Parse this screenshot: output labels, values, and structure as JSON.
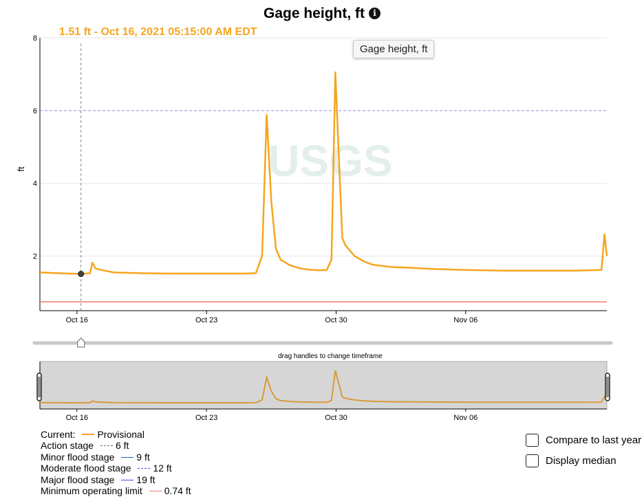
{
  "title": "Gage height, ft",
  "info_icon": "info-icon",
  "hover_label": "1.51 ft - Oct 16, 2021 05:15:00 AM EDT",
  "tooltip": "Gage height, ft",
  "brush_caption": "drag handles to change timeframe",
  "colors": {
    "series": "#f6a51e",
    "brush_series": "#d99a3a",
    "action": "#8a8ae0",
    "minimum": "#f07a70",
    "flood": "#2b50d8"
  },
  "chart_data": {
    "type": "line",
    "title": "Gage height, ft",
    "ylabel": "ft",
    "xlabel": "",
    "x_tick_labels": [
      "Oct 16",
      "Oct 23",
      "Oct 30",
      "Nov 06"
    ],
    "y_tick_labels": [
      "2",
      "4",
      "6",
      "8"
    ],
    "xlim": [
      "2021-10-14T00:00",
      "2021-11-13T15:00"
    ],
    "ylim": [
      0.5,
      8
    ],
    "series": [
      {
        "name": "Provisional",
        "x": [
          "2021-10-14T00:00",
          "2021-10-15T00:00",
          "2021-10-16T05:15",
          "2021-10-16T17:00",
          "2021-10-16T20:00",
          "2021-10-17T00:00",
          "2021-10-17T12:00",
          "2021-10-18T00:00",
          "2021-10-19T12:00",
          "2021-10-21T00:00",
          "2021-10-23T00:00",
          "2021-10-25T00:00",
          "2021-10-25T16:00",
          "2021-10-26T00:00",
          "2021-10-26T06:00",
          "2021-10-26T12:00",
          "2021-10-26T18:00",
          "2021-10-27T00:00",
          "2021-10-27T12:00",
          "2021-10-28T00:00",
          "2021-10-28T12:00",
          "2021-10-29T00:00",
          "2021-10-29T12:00",
          "2021-10-29T18:00",
          "2021-10-29T23:00",
          "2021-10-30T04:00",
          "2021-10-30T08:00",
          "2021-10-30T12:00",
          "2021-10-31T00:00",
          "2021-10-31T12:00",
          "2021-11-01T00:00",
          "2021-11-02T00:00",
          "2021-11-03T00:00",
          "2021-11-04T00:00",
          "2021-11-06T00:00",
          "2021-11-08T00:00",
          "2021-11-10T00:00",
          "2021-11-12T00:00",
          "2021-11-13T08:00",
          "2021-11-13T12:00",
          "2021-11-13T15:00"
        ],
        "y": [
          1.55,
          1.53,
          1.51,
          1.53,
          1.82,
          1.66,
          1.6,
          1.55,
          1.53,
          1.52,
          1.52,
          1.52,
          1.53,
          2.0,
          5.88,
          3.5,
          2.2,
          1.9,
          1.75,
          1.67,
          1.63,
          1.61,
          1.62,
          1.9,
          7.05,
          4.5,
          2.5,
          2.3,
          2.0,
          1.85,
          1.76,
          1.7,
          1.68,
          1.65,
          1.62,
          1.6,
          1.6,
          1.6,
          1.62,
          2.6,
          2.0
        ]
      }
    ],
    "thresholds": [
      {
        "name": "Action stage",
        "value": 6
      },
      {
        "name": "Minimum operating limit",
        "value": 0.74
      }
    ],
    "hover": {
      "x": "2021-10-16T05:15",
      "y": 1.51
    },
    "grid": true
  },
  "legend": {
    "current_label": "Current:",
    "provisional": "Provisional",
    "rows": [
      {
        "label": "Action stage",
        "value": "6 ft",
        "style": "action"
      },
      {
        "label": "Minor flood stage",
        "value": "9 ft",
        "style": "minor"
      },
      {
        "label": "Moderate flood stage",
        "value": "12 ft",
        "style": "moderate"
      },
      {
        "label": "Major flood stage",
        "value": "19 ft",
        "style": "major"
      },
      {
        "label": "Minimum operating limit",
        "value": "0.74 ft",
        "style": "minimum"
      }
    ]
  },
  "controls": {
    "compare_label": "Compare to last year",
    "median_label": "Display median"
  }
}
